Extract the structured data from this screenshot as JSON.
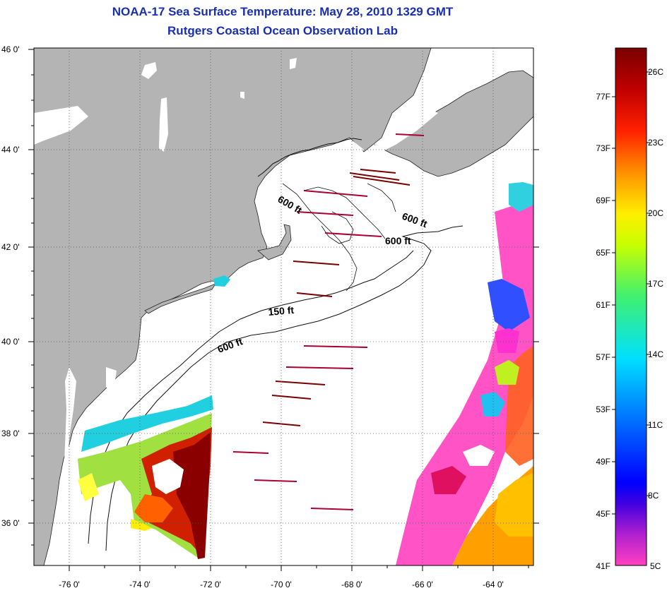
{
  "header": {
    "title": "NOAA-17 Sea Surface Temperature:  May 28, 2010 1329 GMT",
    "subtitle": "Rutgers Coastal Ocean Observation Lab"
  },
  "map": {
    "lat_labels": [
      "46 0'",
      "44 0'",
      "42 0'",
      "40 0'",
      "38 0'",
      "36 0'"
    ],
    "lon_labels": [
      "-76 0'",
      "-74 0'",
      "-72 0'",
      "-70 0'",
      "-68 0'",
      "-66 0'",
      "-64 0'"
    ],
    "isobath_labels": [
      {
        "text": "600 ft"
      },
      {
        "text": "600 ft"
      },
      {
        "text": "600 ft"
      },
      {
        "text": "150 ft"
      },
      {
        "text": "600 ft"
      }
    ],
    "colors": {
      "land": "#b4b4b4",
      "ocean": "#ffffff",
      "grid": "#555555"
    }
  },
  "colorbar": {
    "fahrenheit_labels": [
      "77F",
      "73F",
      "69F",
      "65F",
      "61F",
      "57F",
      "53F",
      "49F",
      "45F",
      "41F"
    ],
    "celsius_labels": [
      "26C",
      "23C",
      "20C",
      "17C",
      "14C",
      "11C",
      "8C",
      "5C"
    ],
    "gradient": [
      "#ff40c0",
      "#7020e0",
      "#0000ff",
      "#0070ff",
      "#00e0ff",
      "#40f070",
      "#c8ff00",
      "#ffee00",
      "#ff9000",
      "#ff2000",
      "#c00000",
      "#7a0000"
    ]
  }
}
